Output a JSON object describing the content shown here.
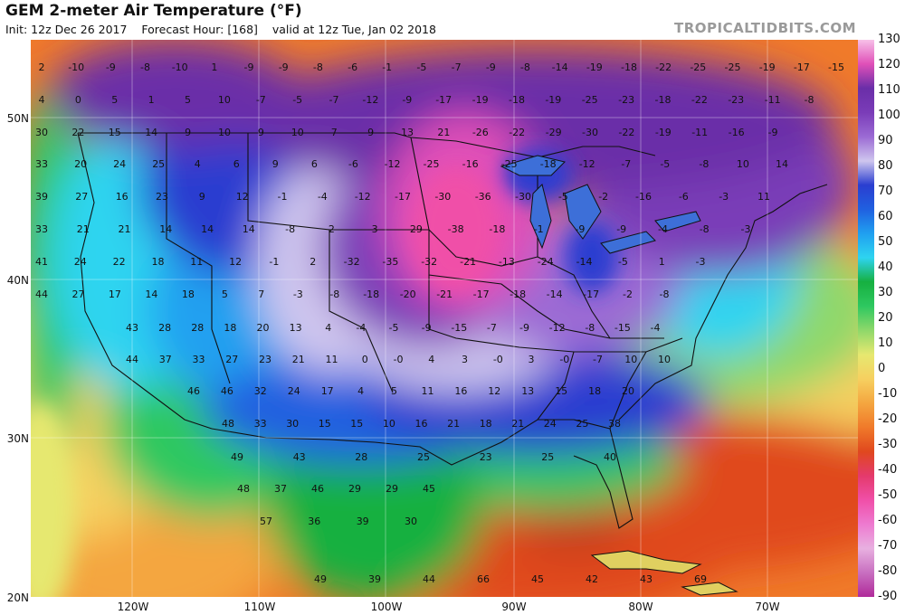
{
  "header": {
    "title": "GEM 2-meter Air Temperature (°F)",
    "init": "Init: 12z Dec 26 2017",
    "forecast_hour": "Forecast Hour: [168]",
    "valid": "valid at 12z Tue, Jan 02 2018",
    "brand": "TROPICALTIDBITS.COM"
  },
  "axes": {
    "lat_labels": [
      "50N",
      "40N",
      "30N",
      "20N"
    ],
    "lon_labels": [
      "120W",
      "110W",
      "100W",
      "90W",
      "80W",
      "70W"
    ]
  },
  "colorbar": {
    "ticks": [
      "130",
      "120",
      "110",
      "100",
      "90",
      "80",
      "70",
      "60",
      "50",
      "40",
      "30",
      "20",
      "10",
      "0",
      "-10",
      "-20",
      "-30",
      "-40",
      "-50",
      "-60",
      "-70",
      "-80",
      "-90"
    ],
    "stops": [
      "#b02a9a",
      "#c86fc0",
      "#e8b0e0",
      "#ee7ad0",
      "#f04fa8",
      "#e43a6c",
      "#e0481e",
      "#f07a2a",
      "#f4a640",
      "#f6d060",
      "#e6e870",
      "#8fd86a",
      "#2ec860",
      "#16b040",
      "#2ed4f0",
      "#20a0f0",
      "#2060e0",
      "#2a3ed0",
      "#cfc6ee",
      "#9b6ad4",
      "#7a3cb8",
      "#6a2ea8",
      "#e050b8",
      "#f7c0e8"
    ]
  },
  "map_values": [
    "2",
    "-10",
    "-9",
    "-8",
    "-10",
    "1",
    "-9",
    "-9",
    "-8",
    "-6",
    "-1",
    "-5",
    "-7",
    "-9",
    "-8",
    "-14",
    "-19",
    "-18",
    "-22",
    "-25",
    "-25",
    "-19",
    "-17",
    "-15",
    "4",
    "0",
    "5",
    "1",
    "5",
    "10",
    "-7",
    "-5",
    "-7",
    "-12",
    "-9",
    "-17",
    "-19",
    "-18",
    "-19",
    "-25",
    "-23",
    "-18",
    "-22",
    "-23",
    "-11",
    "-8",
    "30",
    "22",
    "15",
    "14",
    "9",
    "10",
    "9",
    "10",
    "7",
    "9",
    "13",
    "21",
    "-26",
    "-22",
    "-29",
    "-30",
    "-22",
    "-19",
    "-11",
    "-16",
    "-9",
    "33",
    "20",
    "24",
    "25",
    "4",
    "6",
    "9",
    "6",
    "-6",
    "-12",
    "-25",
    "-16",
    "-25",
    "-18",
    "-12",
    "-7",
    "-5",
    "-8",
    "10",
    "14",
    "39",
    "27",
    "16",
    "23",
    "9",
    "12",
    "-1",
    "-4",
    "-12",
    "-17",
    "-30",
    "-36",
    "-30",
    "-5",
    "-2",
    "-16",
    "-6",
    "-3",
    "11",
    "33",
    "21",
    "21",
    "14",
    "14",
    "14",
    "-8",
    "2",
    "-3",
    "-29",
    "-38",
    "-18",
    "-1",
    "-9",
    "-9",
    "-4",
    "-8",
    "-3",
    "41",
    "24",
    "22",
    "18",
    "11",
    "12",
    "-1",
    "2",
    "-32",
    "-35",
    "-32",
    "-21",
    "-13",
    "-24",
    "-14",
    "-5",
    "1",
    "-3",
    "44",
    "27",
    "17",
    "14",
    "18",
    "5",
    "7",
    "-3",
    "-8",
    "-18",
    "-20",
    "-21",
    "-17",
    "-18",
    "-14",
    "-17",
    "-2",
    "-8",
    "43",
    "28",
    "28",
    "18",
    "20",
    "13",
    "4",
    "-4",
    "-5",
    "-9",
    "-15",
    "-7",
    "-9",
    "-12",
    "-8",
    "-15",
    "-4",
    "44",
    "37",
    "33",
    "27",
    "23",
    "21",
    "11",
    "0",
    "-0",
    "4",
    "3",
    "-0",
    "3",
    "-0",
    "-7",
    "10",
    "10",
    "46",
    "46",
    "32",
    "24",
    "17",
    "4",
    "5",
    "11",
    "16",
    "12",
    "13",
    "15",
    "18",
    "20",
    "48",
    "33",
    "30",
    "15",
    "15",
    "10",
    "16",
    "21",
    "18",
    "21",
    "24",
    "25",
    "38",
    "49",
    "43",
    "28",
    "25",
    "23",
    "25",
    "40",
    "48",
    "37",
    "46",
    "29",
    "29",
    "45",
    "57",
    "36",
    "39",
    "30",
    "49",
    "39",
    "44",
    "66",
    "45",
    "42",
    "43",
    "69"
  ]
}
